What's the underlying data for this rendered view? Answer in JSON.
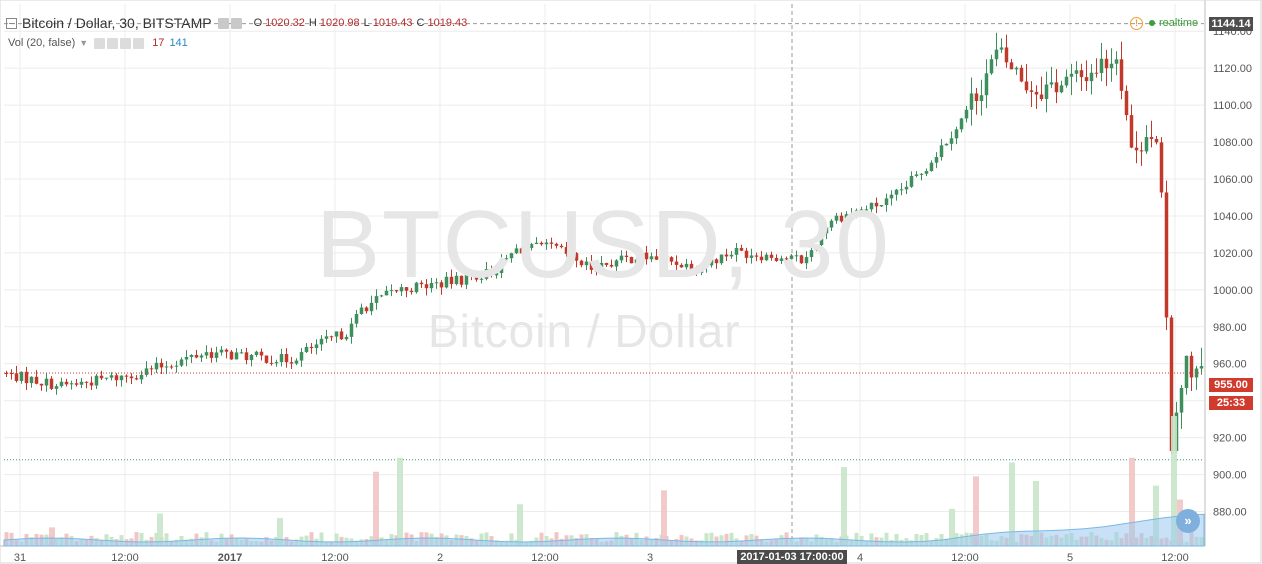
{
  "header": {
    "symbol_title": "Bitcoin / Dollar, 30, BITSTAMP",
    "ohlc": [
      {
        "key": "O",
        "value": "1020.32"
      },
      {
        "key": "H",
        "value": "1020.98"
      },
      {
        "key": "L",
        "value": "1019.43"
      },
      {
        "key": "C",
        "value": "1019.43"
      }
    ],
    "realtime_label": "realtime",
    "icons": [
      "collapse-icon",
      "settings-icon",
      "alert-icon",
      "live-dot-icon"
    ]
  },
  "volume_legend": {
    "label": "Vol (20, false)",
    "value_red": "17",
    "value_blue": "141"
  },
  "watermark": {
    "symbol": "BTCUSD, 30",
    "description": "Bitcoin / Dollar"
  },
  "price_tags": {
    "high": "1144.14",
    "last": "955.00",
    "countdown": "25:33"
  },
  "crosshair": {
    "time_label": "2017-01-03 17:00:00"
  },
  "scroll_button_glyph": "»",
  "colors": {
    "up": "#3d8f5d",
    "down": "#c0392b",
    "up_volume": "#c8e6c9",
    "down_volume": "#f2c4c4",
    "ma_volume": "#9cc9ee",
    "grid": "#ececec",
    "last_price": "#d13b2e"
  },
  "chart_data": {
    "type": "candlestick",
    "title": "Bitcoin / Dollar, 30, BITSTAMP",
    "interval": "30",
    "y_axis": {
      "min": 870,
      "max": 1145,
      "ticks": [
        1140,
        1120,
        1100,
        1080,
        1060,
        1040,
        1020,
        1000,
        980,
        960,
        940,
        920,
        900,
        880
      ],
      "tick_labels": [
        "1140.00",
        "1120.00",
        "1100.00",
        "1080.00",
        "1060.00",
        "1040.00",
        "1020.00",
        "1000.00",
        "980.00",
        "960.00",
        "940.00",
        "920.00",
        "900.00",
        "880.00"
      ]
    },
    "x_axis": {
      "tick_labels": [
        "31",
        "12:00",
        "2017",
        "12:00",
        "2",
        "12:00",
        "3",
        "12:00",
        "4",
        "12:00",
        "5",
        "12:00"
      ]
    },
    "grid": true,
    "reference_lines": {
      "session_high": 1144.14,
      "dotted_low": 908
    },
    "price_anchors": [
      {
        "t": 0,
        "p": 955
      },
      {
        "t": 0.05,
        "p": 948
      },
      {
        "t": 0.11,
        "p": 954
      },
      {
        "t": 0.17,
        "p": 966
      },
      {
        "t": 0.24,
        "p": 962
      },
      {
        "t": 0.26,
        "p": 969
      },
      {
        "t": 0.29,
        "p": 978
      },
      {
        "t": 0.3,
        "p": 990
      },
      {
        "t": 0.33,
        "p": 1000
      },
      {
        "t": 0.38,
        "p": 1005
      },
      {
        "t": 0.41,
        "p": 1010
      },
      {
        "t": 0.43,
        "p": 1022
      },
      {
        "t": 0.46,
        "p": 1023
      },
      {
        "t": 0.49,
        "p": 1012
      },
      {
        "t": 0.53,
        "p": 1018
      },
      {
        "t": 0.55,
        "p": 1017
      },
      {
        "t": 0.58,
        "p": 1012
      },
      {
        "t": 0.61,
        "p": 1021
      },
      {
        "t": 0.67,
        "p": 1016
      },
      {
        "t": 0.69,
        "p": 1038
      },
      {
        "t": 0.74,
        "p": 1048
      },
      {
        "t": 0.77,
        "p": 1066
      },
      {
        "t": 0.8,
        "p": 1092
      },
      {
        "t": 0.83,
        "p": 1128
      },
      {
        "t": 0.86,
        "p": 1108
      },
      {
        "t": 0.9,
        "p": 1115
      },
      {
        "t": 0.93,
        "p": 1128
      },
      {
        "t": 0.944,
        "p": 1068
      },
      {
        "t": 0.955,
        "p": 1090
      },
      {
        "t": 0.965,
        "p": 1072
      },
      {
        "t": 0.975,
        "p": 918
      },
      {
        "t": 0.985,
        "p": 960
      },
      {
        "t": 1.0,
        "p": 955
      }
    ],
    "volume_spikes": [
      {
        "t": 0.04,
        "v": 20
      },
      {
        "t": 0.13,
        "v": 35
      },
      {
        "t": 0.23,
        "v": 30
      },
      {
        "t": 0.31,
        "v": 80
      },
      {
        "t": 0.33,
        "v": 95
      },
      {
        "t": 0.43,
        "v": 45
      },
      {
        "t": 0.55,
        "v": 60
      },
      {
        "t": 0.7,
        "v": 85
      },
      {
        "t": 0.79,
        "v": 40
      },
      {
        "t": 0.81,
        "v": 75
      },
      {
        "t": 0.84,
        "v": 90
      },
      {
        "t": 0.86,
        "v": 70
      },
      {
        "t": 0.94,
        "v": 95
      },
      {
        "t": 0.96,
        "v": 65
      },
      {
        "t": 0.975,
        "v": 140
      },
      {
        "t": 0.98,
        "v": 50
      }
    ]
  }
}
